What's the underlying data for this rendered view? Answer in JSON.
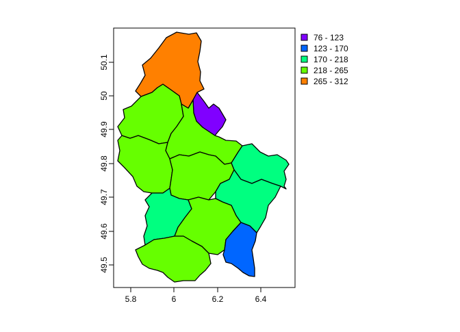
{
  "map": {
    "x_ticks": [
      "5.8",
      "6",
      "6.2",
      "6.4"
    ],
    "y_ticks": [
      "49.5",
      "49.6",
      "49.7",
      "49.8",
      "49.9",
      "50",
      "50.1"
    ],
    "xlim": [
      5.73,
      6.53
    ],
    "ylim": [
      49.44,
      50.19
    ]
  },
  "legend": {
    "position": "top-right",
    "entries": [
      {
        "label": "76 - 123",
        "color": "#8000FF"
      },
      {
        "label": "123 - 170",
        "color": "#0066FF"
      },
      {
        "label": "170 - 218",
        "color": "#00FF80"
      },
      {
        "label": "218 - 265",
        "color": "#66FF00"
      },
      {
        "label": "265 - 312",
        "color": "#FF8000"
      }
    ]
  },
  "regions": [
    {
      "id": "north",
      "color": "#FF8000",
      "class": "265 - 312"
    },
    {
      "id": "northeast-small",
      "color": "#8000FF",
      "class": "76 - 123"
    },
    {
      "id": "northwest",
      "color": "#66FF00",
      "class": "218 - 265"
    },
    {
      "id": "north-central",
      "color": "#66FF00",
      "class": "218 - 265"
    },
    {
      "id": "west",
      "color": "#66FF00",
      "class": "218 - 265"
    },
    {
      "id": "central",
      "color": "#66FF00",
      "class": "218 - 265"
    },
    {
      "id": "east",
      "color": "#00FF80",
      "class": "170 - 218"
    },
    {
      "id": "southeast",
      "color": "#00FF80",
      "class": "170 - 218"
    },
    {
      "id": "southwest",
      "color": "#00FF80",
      "class": "170 - 218"
    },
    {
      "id": "south-central",
      "color": "#66FF00",
      "class": "218 - 265"
    },
    {
      "id": "south",
      "color": "#66FF00",
      "class": "218 - 265"
    },
    {
      "id": "southeast-corner",
      "color": "#0066FF",
      "class": "123 - 170"
    }
  ]
}
